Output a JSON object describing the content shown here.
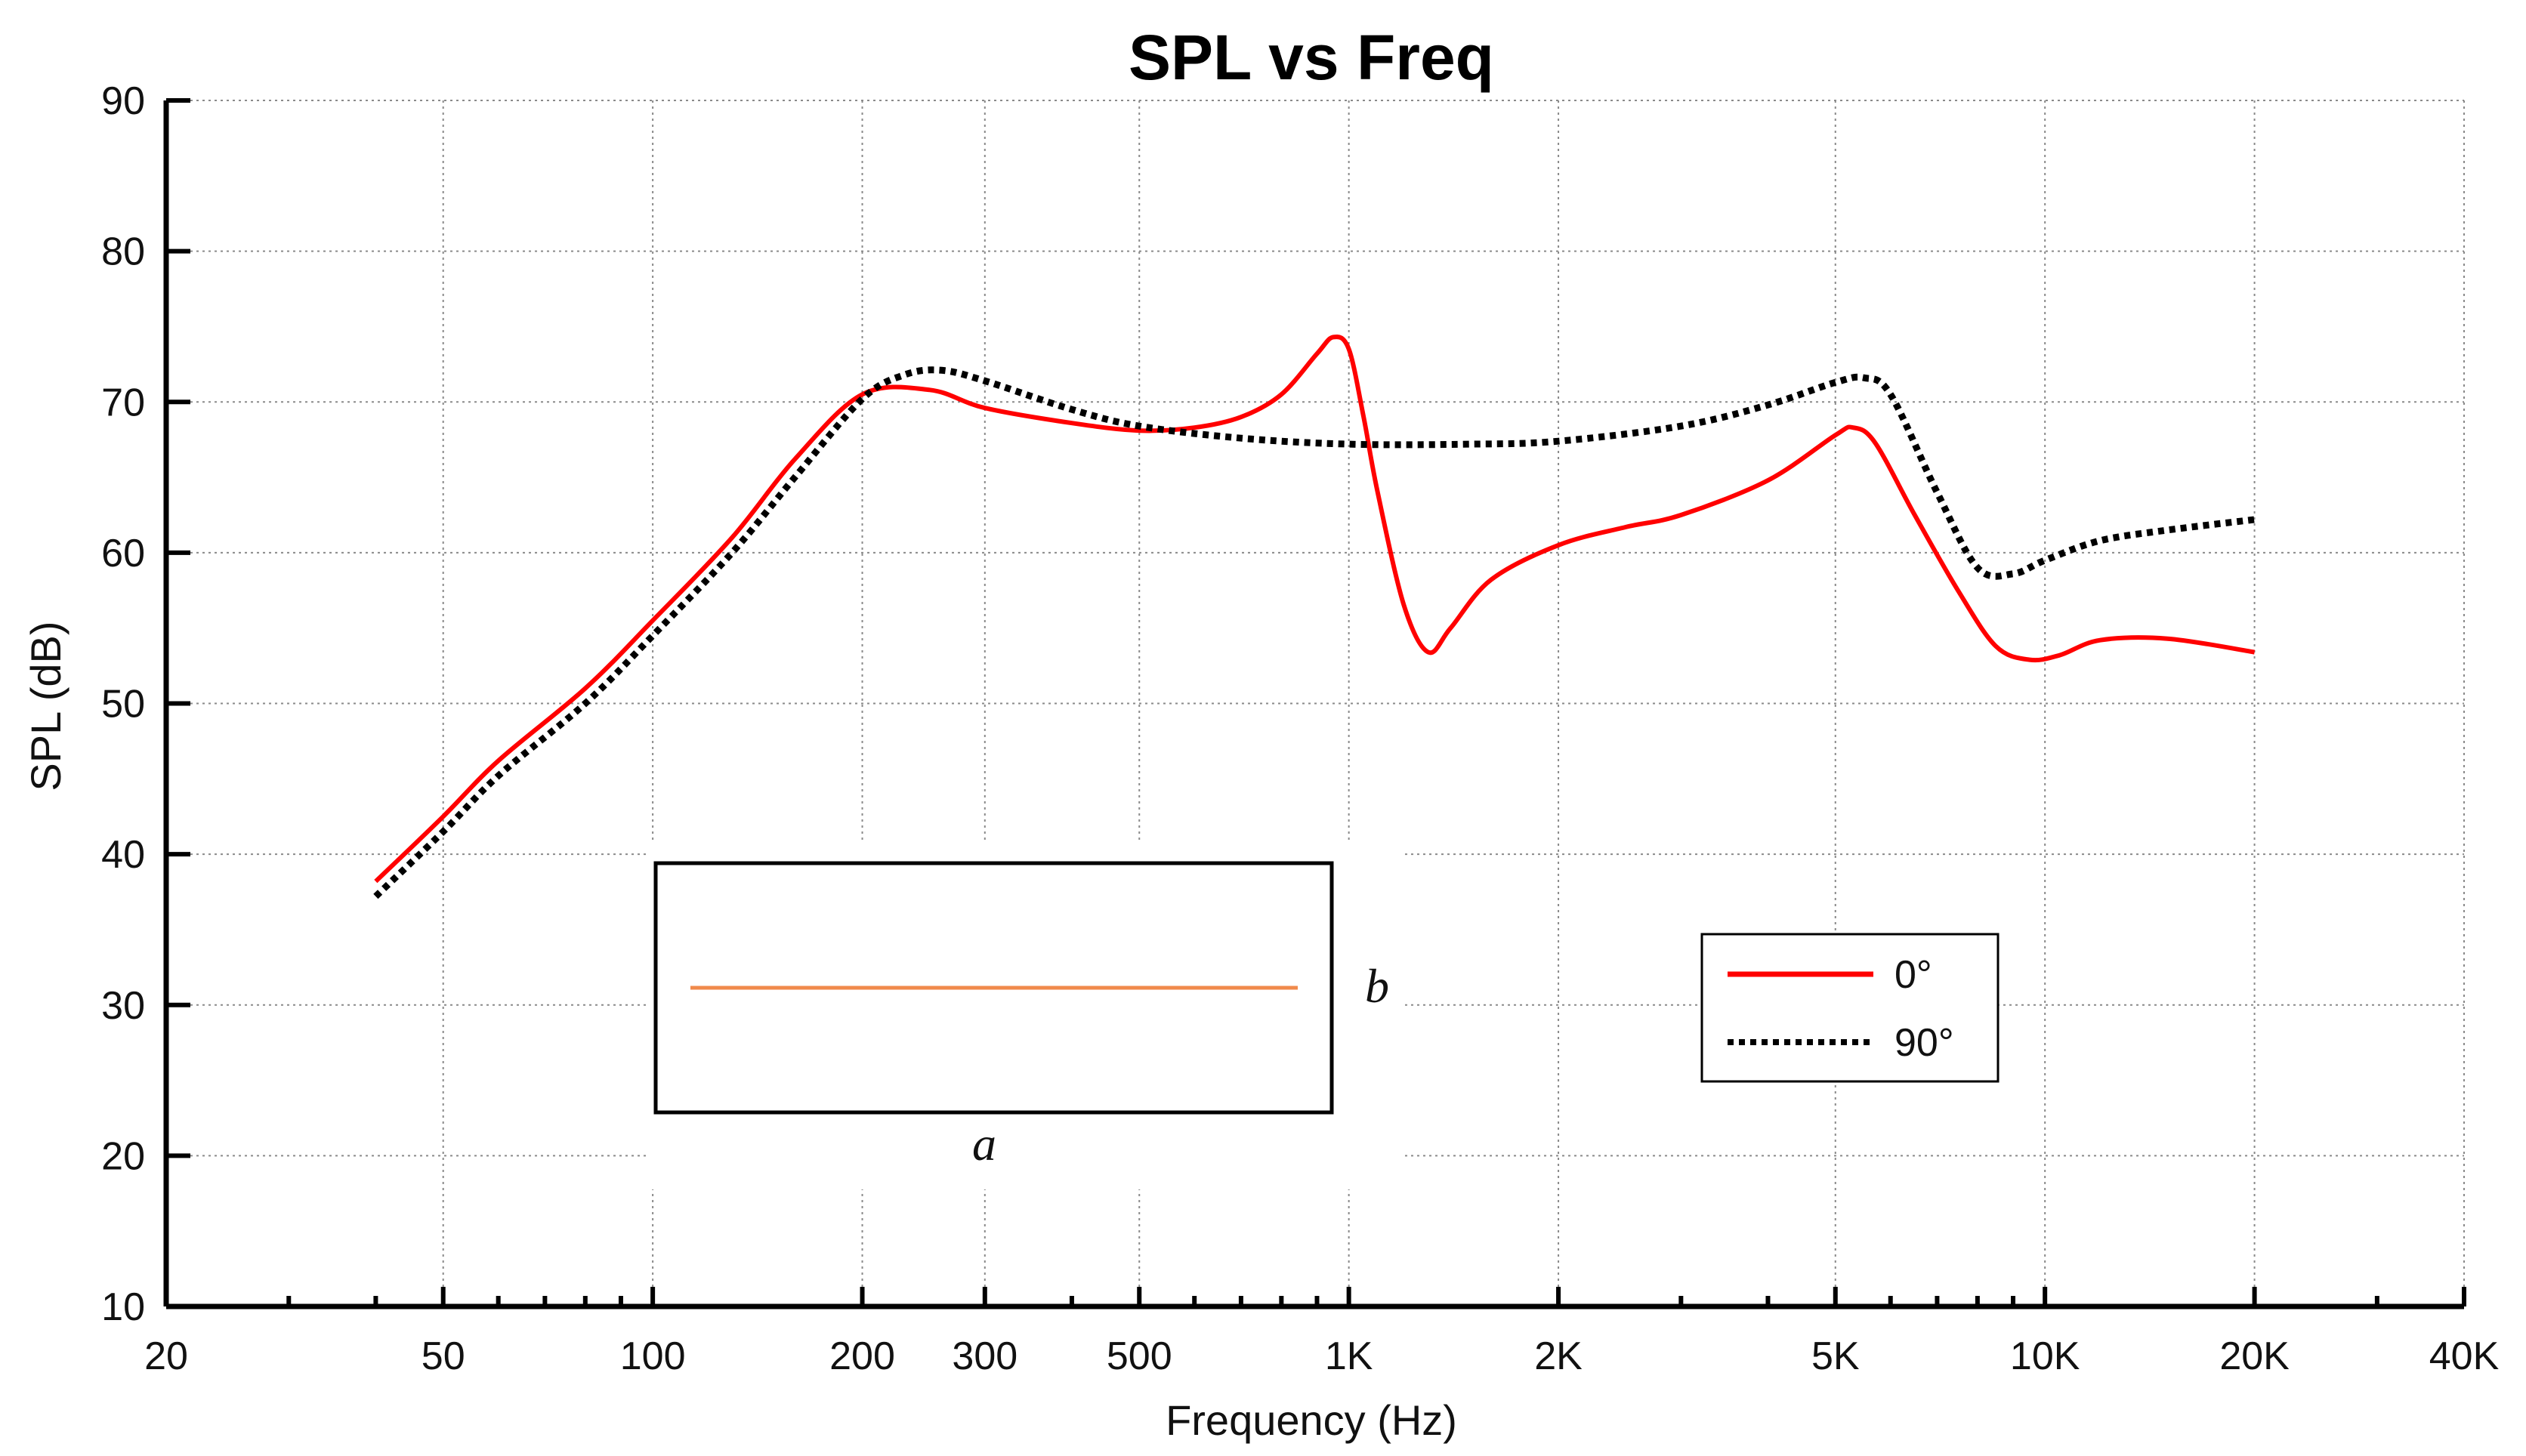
{
  "chart_data": {
    "type": "line",
    "title": "SPL vs Freq",
    "xlabel": "Frequency (Hz)",
    "ylabel": "SPL (dB)",
    "xscale": "log",
    "xlim": [
      20,
      40000
    ],
    "ylim": [
      10,
      90
    ],
    "grid": true,
    "legend_position": "lower-right",
    "x_ticks": [
      {
        "value": 20,
        "label": "20"
      },
      {
        "value": 50,
        "label": "50"
      },
      {
        "value": 100,
        "label": "100"
      },
      {
        "value": 200,
        "label": "200"
      },
      {
        "value": 300,
        "label": "300"
      },
      {
        "value": 500,
        "label": "500"
      },
      {
        "value": 1000,
        "label": "1K"
      },
      {
        "value": 2000,
        "label": "2K"
      },
      {
        "value": 5000,
        "label": "5K"
      },
      {
        "value": 10000,
        "label": "10K"
      },
      {
        "value": 20000,
        "label": "20K"
      },
      {
        "value": 40000,
        "label": "40K"
      }
    ],
    "y_ticks": [
      {
        "value": 10,
        "label": "10"
      },
      {
        "value": 20,
        "label": "20"
      },
      {
        "value": 30,
        "label": "30"
      },
      {
        "value": 40,
        "label": "40"
      },
      {
        "value": 50,
        "label": "50"
      },
      {
        "value": 60,
        "label": "60"
      },
      {
        "value": 70,
        "label": "70"
      },
      {
        "value": 80,
        "label": "80"
      },
      {
        "value": 90,
        "label": "90"
      }
    ],
    "minor_x_ticks": [
      30,
      40,
      60,
      70,
      80,
      90,
      400,
      600,
      700,
      800,
      900,
      3000,
      4000,
      6000,
      7000,
      8000,
      9000,
      30000
    ],
    "series": [
      {
        "name": "0°",
        "color": "#ff0000",
        "style": "solid",
        "points": [
          [
            40,
            38.2
          ],
          [
            50,
            42.5
          ],
          [
            60,
            46.2
          ],
          [
            80,
            51.0
          ],
          [
            100,
            55.5
          ],
          [
            130,
            61.0
          ],
          [
            160,
            66.2
          ],
          [
            200,
            70.5
          ],
          [
            250,
            70.8
          ],
          [
            300,
            69.6
          ],
          [
            400,
            68.6
          ],
          [
            500,
            68.1
          ],
          [
            600,
            68.3
          ],
          [
            700,
            69.0
          ],
          [
            800,
            70.5
          ],
          [
            900,
            73.2
          ],
          [
            950,
            74.3
          ],
          [
            1000,
            73.5
          ],
          [
            1050,
            69.0
          ],
          [
            1100,
            64.0
          ],
          [
            1200,
            56.5
          ],
          [
            1300,
            53.4
          ],
          [
            1400,
            55.0
          ],
          [
            1600,
            58.2
          ],
          [
            2000,
            60.5
          ],
          [
            2500,
            61.7
          ],
          [
            3000,
            62.5
          ],
          [
            4000,
            64.8
          ],
          [
            5000,
            67.8
          ],
          [
            5300,
            68.3
          ],
          [
            5700,
            67.3
          ],
          [
            6500,
            62.5
          ],
          [
            7500,
            57.5
          ],
          [
            8500,
            53.8
          ],
          [
            9500,
            52.9
          ],
          [
            10500,
            53.2
          ],
          [
            12000,
            54.2
          ],
          [
            15000,
            54.3
          ],
          [
            20000,
            53.4
          ]
        ]
      },
      {
        "name": "90°",
        "color": "#000000",
        "style": "dotted",
        "points": [
          [
            40,
            37.2
          ],
          [
            50,
            41.5
          ],
          [
            60,
            45.2
          ],
          [
            80,
            50.0
          ],
          [
            100,
            54.5
          ],
          [
            130,
            60.0
          ],
          [
            160,
            65.0
          ],
          [
            200,
            70.2
          ],
          [
            230,
            71.8
          ],
          [
            260,
            72.1
          ],
          [
            300,
            71.4
          ],
          [
            400,
            69.5
          ],
          [
            500,
            68.4
          ],
          [
            700,
            67.6
          ],
          [
            1000,
            67.2
          ],
          [
            1500,
            67.2
          ],
          [
            2000,
            67.4
          ],
          [
            3000,
            68.4
          ],
          [
            4000,
            69.8
          ],
          [
            5000,
            71.3
          ],
          [
            5500,
            71.6
          ],
          [
            6000,
            70.5
          ],
          [
            7000,
            64.0
          ],
          [
            8000,
            59.0
          ],
          [
            9000,
            58.6
          ],
          [
            10000,
            59.5
          ],
          [
            12000,
            60.8
          ],
          [
            15000,
            61.5
          ],
          [
            20000,
            62.2
          ]
        ]
      }
    ],
    "inset": {
      "x_label": "a",
      "y_label": "b",
      "line_color": "#f08a4b"
    }
  }
}
